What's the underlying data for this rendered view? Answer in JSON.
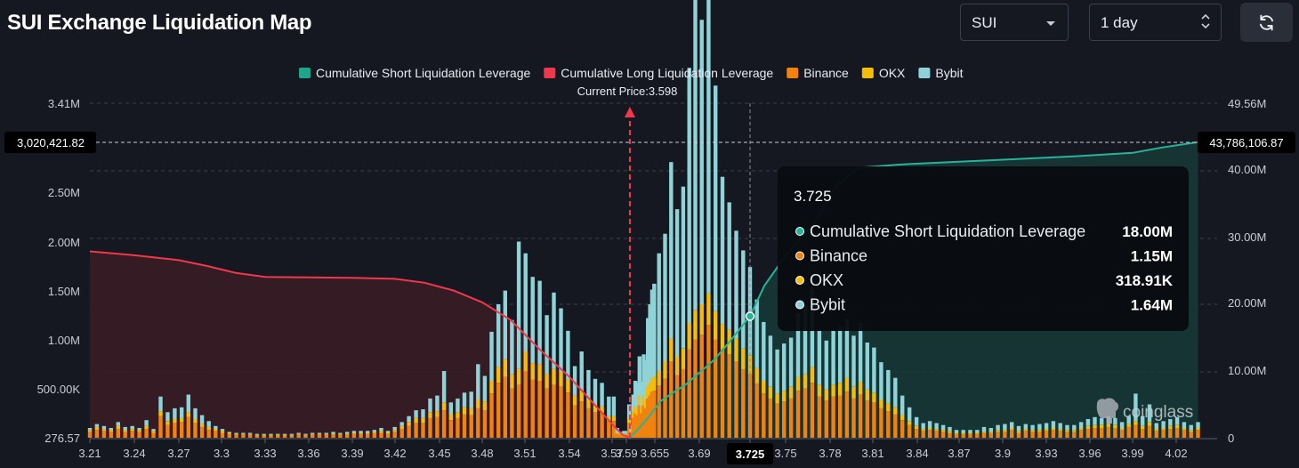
{
  "header": {
    "title": "SUI Exchange Liquidation Map",
    "symbol_select": {
      "value": "SUI"
    },
    "range_select": {
      "value": "1 day"
    },
    "refresh_icon": "refresh-icon"
  },
  "legend": [
    {
      "label": "Cumulative Short Liquidation Leverage",
      "color": "#1fa58a"
    },
    {
      "label": "Cumulative Long Liquidation Leverage",
      "color": "#f0384a"
    },
    {
      "label": "Binance",
      "color": "#f0820f"
    },
    {
      "label": "OKX",
      "color": "#f5bd0b"
    },
    {
      "label": "Bybit",
      "color": "#8fd3d8"
    }
  ],
  "current_price_label": "Current Price:3.598",
  "watermark": "coinglass",
  "crosshair": {
    "left_value": "3,020,421.82",
    "right_value": "43,786,106.87",
    "x_label": "3.725"
  },
  "tooltip": {
    "title": "3.725",
    "rows": [
      {
        "label": "Cumulative Short Liquidation Leverage",
        "value": "18.00M",
        "color": "#26b39a"
      },
      {
        "label": "Binance",
        "value": "1.15M",
        "color": "#f0820f"
      },
      {
        "label": "OKX",
        "value": "318.91K",
        "color": "#f5bd0b"
      },
      {
        "label": "Bybit",
        "value": "1.64M",
        "color": "#8fd3d8"
      }
    ]
  },
  "chart_data": {
    "type": "bar",
    "x_tick_labels": [
      "3.21",
      "3.24",
      "3.27",
      "3.3",
      "3.33",
      "3.36",
      "3.39",
      "3.42",
      "3.45",
      "3.48",
      "3.51",
      "3.54",
      "3.57",
      "3.59",
      "3.655",
      "3.69",
      "3.725",
      "3.75",
      "3.78",
      "3.81",
      "3.84",
      "3.87",
      "3.9",
      "3.93",
      "3.96",
      "3.99",
      "4.02"
    ],
    "y_left_ticks": [
      "3.41M",
      "2.50M",
      "2.00M",
      "1.50M",
      "1.00M",
      "500.00K",
      "276.57"
    ],
    "y_right_ticks": [
      "49.56M",
      "40.00M",
      "30.00M",
      "20.00M",
      "10.00M",
      "0"
    ],
    "y_left_range": [
      0,
      3410000
    ],
    "y_right_range": [
      0,
      49560000
    ],
    "current_price": 3.598,
    "bar_prices_range": [
      3.21,
      4.035
    ],
    "series": [
      {
        "name": "Binance",
        "stack": "bars",
        "values": [
          60,
          80,
          70,
          60,
          90,
          60,
          70,
          60,
          90,
          50,
          220,
          130,
          150,
          160,
          210,
          150,
          110,
          80,
          70,
          50,
          40,
          30,
          30,
          30,
          20,
          20,
          20,
          20,
          20,
          20,
          30,
          20,
          30,
          30,
          30,
          30,
          30,
          30,
          40,
          40,
          40,
          50,
          50,
          40,
          60,
          90,
          120,
          150,
          150,
          200,
          210,
          280,
          180,
          200,
          240,
          230,
          300,
          280,
          450,
          560,
          620,
          500,
          540,
          680,
          590,
          580,
          500,
          540,
          520,
          460,
          330,
          370,
          300,
          260,
          250,
          170,
          170,
          40,
          30,
          30,
          30,
          150,
          50,
          200,
          250,
          230,
          330,
          250,
          330,
          300,
          400,
          430,
          470,
          480,
          530,
          600,
          780,
          640,
          700,
          900,
          1000,
          1050,
          1150,
          1000,
          900,
          850,
          780,
          700,
          650,
          550,
          450,
          400,
          350,
          370,
          400,
          480,
          500,
          560,
          420,
          380,
          420,
          430,
          470,
          400,
          440,
          380,
          360,
          300,
          270,
          240,
          180,
          130,
          90,
          70,
          80,
          70,
          60,
          50,
          40,
          40,
          40,
          40,
          50,
          50,
          60,
          60,
          80,
          50,
          70,
          60,
          60,
          70,
          80,
          70,
          60,
          60,
          80,
          90,
          100,
          100,
          110,
          100,
          80,
          110,
          130,
          90,
          120,
          70,
          80,
          90,
          100,
          80,
          60,
          80
        ]
      },
      {
        "name": "OKX",
        "stack": "bars",
        "values": [
          20,
          30,
          20,
          20,
          30,
          20,
          20,
          20,
          30,
          20,
          50,
          40,
          40,
          40,
          50,
          40,
          30,
          30,
          20,
          20,
          10,
          10,
          10,
          10,
          10,
          10,
          10,
          10,
          10,
          10,
          10,
          10,
          10,
          10,
          10,
          10,
          10,
          10,
          10,
          10,
          10,
          10,
          20,
          10,
          20,
          30,
          40,
          50,
          50,
          60,
          60,
          80,
          60,
          60,
          70,
          70,
          90,
          90,
          130,
          160,
          180,
          150,
          160,
          200,
          170,
          170,
          150,
          160,
          150,
          130,
          100,
          110,
          90,
          80,
          70,
          50,
          50,
          10,
          10,
          10,
          10,
          40,
          20,
          60,
          70,
          70,
          100,
          70,
          100,
          90,
          120,
          130,
          140,
          140,
          150,
          180,
          230,
          190,
          210,
          270,
          300,
          310,
          320,
          290,
          260,
          250,
          230,
          210,
          190,
          160,
          130,
          120,
          100,
          110,
          120,
          140,
          150,
          160,
          120,
          110,
          120,
          130,
          140,
          120,
          130,
          110,
          100,
          90,
          80,
          70,
          50,
          40,
          30,
          20,
          20,
          20,
          20,
          20,
          10,
          10,
          10,
          10,
          10,
          10,
          20,
          20,
          20,
          20,
          20,
          20,
          20,
          20,
          20,
          20,
          20,
          20,
          20,
          30,
          30,
          30,
          30,
          30,
          20,
          30,
          40,
          30,
          40,
          20,
          20,
          30,
          30,
          20,
          20,
          20
        ]
      },
      {
        "name": "Bybit",
        "stack": "bars",
        "values": [
          20,
          30,
          30,
          20,
          40,
          30,
          30,
          20,
          60,
          20,
          150,
          90,
          110,
          110,
          180,
          110,
          90,
          60,
          30,
          20,
          10,
          10,
          10,
          10,
          10,
          10,
          10,
          10,
          10,
          10,
          10,
          10,
          10,
          10,
          10,
          20,
          10,
          20,
          20,
          20,
          20,
          20,
          30,
          20,
          30,
          40,
          60,
          80,
          90,
          140,
          160,
          320,
          120,
          140,
          150,
          170,
          360,
          260,
          500,
          640,
          700,
          550,
          1300,
          1000,
          880,
          850,
          600,
          780,
          650,
          500,
          300,
          400,
          300,
          260,
          240,
          200,
          200,
          50,
          20,
          30,
          30,
          150,
          60,
          180,
          260,
          260,
          400,
          250,
          420,
          400,
          700,
          800,
          900,
          950,
          1200,
          1300,
          1800,
          1500,
          1650,
          2600,
          3500,
          2900,
          3100,
          2300,
          1500,
          1300,
          1100,
          1000,
          900,
          700,
          600,
          520,
          450,
          480,
          500,
          650,
          700,
          800,
          560,
          500,
          560,
          580,
          600,
          520,
          600,
          480,
          460,
          380,
          340,
          300,
          200,
          140,
          90,
          60,
          70,
          60,
          50,
          40,
          30,
          30,
          30,
          30,
          50,
          40,
          50,
          60,
          60,
          50,
          50,
          50,
          60,
          60,
          70,
          60,
          50,
          50,
          60,
          70,
          80,
          70,
          80,
          70,
          60,
          80,
          280,
          100,
          180,
          60,
          70,
          70,
          80,
          60,
          50,
          60
        ]
      },
      {
        "name": "Cumulative Short Liquidation Leverage",
        "axis": "right",
        "points": [
          [
            3.598,
            0
          ],
          [
            3.62,
            1500000
          ],
          [
            3.64,
            3000000
          ],
          [
            3.66,
            5500000
          ],
          [
            3.68,
            8000000
          ],
          [
            3.7,
            11500000
          ],
          [
            3.71,
            14000000
          ],
          [
            3.725,
            18000000
          ],
          [
            3.735,
            22500000
          ],
          [
            3.75,
            27000000
          ],
          [
            3.77,
            32000000
          ],
          [
            3.785,
            37500000
          ],
          [
            3.8,
            40000000
          ],
          [
            3.83,
            40500000
          ],
          [
            3.87,
            40900000
          ],
          [
            3.91,
            41300000
          ],
          [
            3.95,
            41700000
          ],
          [
            3.99,
            42200000
          ],
          [
            4.01,
            43000000
          ],
          [
            4.035,
            43786106
          ]
        ]
      },
      {
        "name": "Cumulative Long Liquidation Leverage",
        "axis": "left",
        "points": [
          [
            3.21,
            1900000
          ],
          [
            3.24,
            1860000
          ],
          [
            3.27,
            1810000
          ],
          [
            3.29,
            1750000
          ],
          [
            3.31,
            1680000
          ],
          [
            3.33,
            1640000
          ],
          [
            3.36,
            1635000
          ],
          [
            3.39,
            1630000
          ],
          [
            3.42,
            1620000
          ],
          [
            3.44,
            1580000
          ],
          [
            3.46,
            1500000
          ],
          [
            3.48,
            1380000
          ],
          [
            3.5,
            1200000
          ],
          [
            3.52,
            900000
          ],
          [
            3.54,
            620000
          ],
          [
            3.56,
            300000
          ],
          [
            3.575,
            100000
          ],
          [
            3.585,
            30000
          ],
          [
            3.598,
            0
          ]
        ]
      }
    ]
  }
}
